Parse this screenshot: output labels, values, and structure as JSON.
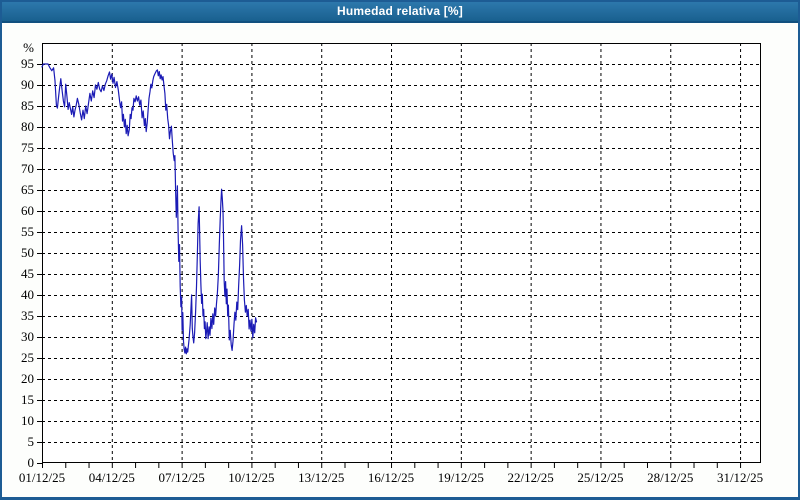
{
  "window": {
    "title": "Humedad relativa [%]"
  },
  "colors": {
    "header_bg_top": "#2d78ac",
    "header_bg_bottom": "#19608f",
    "header_border": "#11507f",
    "header_text": "#ffffff",
    "frame_border": "#1d5c94",
    "content_bg": "#fdfefc",
    "plot_bg": "#ffffff",
    "grid": "#000000",
    "axis": "#000000",
    "tick_label": "#000000",
    "series_line": "#1b1bb5"
  },
  "chart_data": {
    "type": "line",
    "title": "Humedad relativa [%]",
    "ylabel": "%",
    "xlabel": "",
    "unit": "%",
    "grid": "dashed",
    "legend": "none",
    "ylim": [
      0,
      100
    ],
    "ytick_step": 5,
    "ytick_labels": [
      "0",
      "5",
      "10",
      "15",
      "20",
      "25",
      "30",
      "35",
      "40",
      "45",
      "50",
      "55",
      "60",
      "65",
      "70",
      "75",
      "80",
      "85",
      "90",
      "95"
    ],
    "x_days_range": [
      0,
      30
    ],
    "x_right_padding_days": 0.9,
    "xtick_interval_days": 3,
    "minor_xtick_interval_days": 1,
    "xtick_labels": [
      "01/12/25",
      "04/12/25",
      "07/12/25",
      "10/12/25",
      "13/12/25",
      "16/12/25",
      "19/12/25",
      "22/12/25",
      "25/12/25",
      "28/12/25",
      "31/12/25"
    ],
    "series": [
      {
        "name": "Humedad relativa",
        "unit": "%",
        "points": [
          [
            0.0,
            94.3
          ],
          [
            0.06,
            95
          ],
          [
            0.26,
            95
          ],
          [
            0.33,
            94.2
          ],
          [
            0.42,
            93.4
          ],
          [
            0.5,
            94.1
          ],
          [
            0.56,
            91
          ],
          [
            0.62,
            85.2
          ],
          [
            0.66,
            84.5
          ],
          [
            0.71,
            87
          ],
          [
            0.76,
            89.5
          ],
          [
            0.81,
            91.5
          ],
          [
            0.87,
            88.5
          ],
          [
            0.92,
            86.2
          ],
          [
            0.97,
            84.8
          ],
          [
            1.02,
            90.2
          ],
          [
            1.07,
            87.4
          ],
          [
            1.12,
            84.2
          ],
          [
            1.17,
            85.8
          ],
          [
            1.22,
            84.4
          ],
          [
            1.27,
            83
          ],
          [
            1.32,
            84.8
          ],
          [
            1.37,
            82.4
          ],
          [
            1.42,
            84
          ],
          [
            1.47,
            85.2
          ],
          [
            1.52,
            86.8
          ],
          [
            1.58,
            85.4
          ],
          [
            1.64,
            83.4
          ],
          [
            1.7,
            81.7
          ],
          [
            1.76,
            84
          ],
          [
            1.82,
            82
          ],
          [
            1.88,
            85
          ],
          [
            1.94,
            83.2
          ],
          [
            2.0,
            85.6
          ],
          [
            2.06,
            88
          ],
          [
            2.12,
            86.2
          ],
          [
            2.18,
            88.6
          ],
          [
            2.24,
            87
          ],
          [
            2.3,
            90
          ],
          [
            2.36,
            89
          ],
          [
            2.42,
            90.6
          ],
          [
            2.48,
            89
          ],
          [
            2.54,
            88.4
          ],
          [
            2.6,
            89.8
          ],
          [
            2.66,
            88.7
          ],
          [
            2.72,
            90.2
          ],
          [
            2.78,
            91
          ],
          [
            2.84,
            92.2
          ],
          [
            2.9,
            93.1
          ],
          [
            2.95,
            91.4
          ],
          [
            3.0,
            92.6
          ],
          [
            3.05,
            90.4
          ],
          [
            3.1,
            91.8
          ],
          [
            3.16,
            89.4
          ],
          [
            3.22,
            90.8
          ],
          [
            3.28,
            88.8
          ],
          [
            3.34,
            86
          ],
          [
            3.38,
            84.6
          ],
          [
            3.42,
            86
          ],
          [
            3.46,
            81.4
          ],
          [
            3.5,
            83
          ],
          [
            3.54,
            80
          ],
          [
            3.58,
            81.8
          ],
          [
            3.62,
            78.4
          ],
          [
            3.66,
            80.4
          ],
          [
            3.7,
            77.9
          ],
          [
            3.75,
            79.4
          ],
          [
            3.79,
            83
          ],
          [
            3.83,
            82
          ],
          [
            3.87,
            84.6
          ],
          [
            3.91,
            84
          ],
          [
            3.95,
            86.8
          ],
          [
            4.0,
            86
          ],
          [
            4.05,
            87.4
          ],
          [
            4.1,
            86.2
          ],
          [
            4.15,
            87.2
          ],
          [
            4.2,
            85.2
          ],
          [
            4.25,
            86.4
          ],
          [
            4.3,
            82.2
          ],
          [
            4.35,
            83.8
          ],
          [
            4.4,
            80.3
          ],
          [
            4.44,
            82
          ],
          [
            4.48,
            78.9
          ],
          [
            4.52,
            81
          ],
          [
            4.56,
            84
          ],
          [
            4.6,
            86.8
          ],
          [
            4.64,
            88.4
          ],
          [
            4.68,
            90.2
          ],
          [
            4.72,
            89.3
          ],
          [
            4.76,
            91
          ],
          [
            4.8,
            92
          ],
          [
            4.84,
            92.5
          ],
          [
            4.88,
            93
          ],
          [
            4.92,
            93.4
          ],
          [
            4.96,
            93.6
          ],
          [
            5.0,
            92.2
          ],
          [
            5.04,
            93.2
          ],
          [
            5.08,
            91.5
          ],
          [
            5.12,
            92.4
          ],
          [
            5.16,
            91.2
          ],
          [
            5.2,
            92
          ],
          [
            5.24,
            90
          ],
          [
            5.28,
            88
          ],
          [
            5.32,
            84
          ],
          [
            5.36,
            85.4
          ],
          [
            5.4,
            82
          ],
          [
            5.44,
            80.4
          ],
          [
            5.48,
            77.2
          ],
          [
            5.52,
            79
          ],
          [
            5.56,
            80.2
          ],
          [
            5.6,
            76.8
          ],
          [
            5.64,
            73.8
          ],
          [
            5.68,
            72
          ],
          [
            5.71,
            73.2
          ],
          [
            5.74,
            65
          ],
          [
            5.77,
            58.5
          ],
          [
            5.79,
            60.5
          ],
          [
            5.82,
            66
          ],
          [
            5.85,
            55
          ],
          [
            5.88,
            48
          ],
          [
            5.91,
            52
          ],
          [
            5.94,
            42
          ],
          [
            5.97,
            37.2
          ],
          [
            6.0,
            39.5
          ],
          [
            6.02,
            31.6
          ],
          [
            6.05,
            35.8
          ],
          [
            6.08,
            29
          ],
          [
            6.11,
            27
          ],
          [
            6.14,
            26.2
          ],
          [
            6.17,
            27.6
          ],
          [
            6.2,
            26
          ],
          [
            6.23,
            27.2
          ],
          [
            6.26,
            26.4
          ],
          [
            6.32,
            29.5
          ],
          [
            6.37,
            33
          ],
          [
            6.43,
            40
          ],
          [
            6.46,
            32
          ],
          [
            6.49,
            30
          ],
          [
            6.52,
            28.6
          ],
          [
            6.56,
            31
          ],
          [
            6.6,
            36
          ],
          [
            6.64,
            42
          ],
          [
            6.68,
            50
          ],
          [
            6.71,
            57
          ],
          [
            6.75,
            61
          ],
          [
            6.77,
            56.4
          ],
          [
            6.8,
            48
          ],
          [
            6.83,
            42.4
          ],
          [
            6.86,
            38
          ],
          [
            6.89,
            40.2
          ],
          [
            6.92,
            35
          ],
          [
            6.95,
            36.6
          ],
          [
            6.98,
            32
          ],
          [
            7.01,
            33.6
          ],
          [
            7.04,
            29.6
          ],
          [
            7.07,
            31.2
          ],
          [
            7.1,
            33.4
          ],
          [
            7.14,
            29.6
          ],
          [
            7.18,
            32.4
          ],
          [
            7.22,
            30.4
          ],
          [
            7.26,
            34.5
          ],
          [
            7.3,
            32
          ],
          [
            7.34,
            35.5
          ],
          [
            7.38,
            33
          ],
          [
            7.42,
            36.9
          ],
          [
            7.46,
            35
          ],
          [
            7.5,
            38
          ],
          [
            7.54,
            40.5
          ],
          [
            7.58,
            45
          ],
          [
            7.62,
            52
          ],
          [
            7.66,
            58
          ],
          [
            7.69,
            62
          ],
          [
            7.72,
            65.2
          ],
          [
            7.75,
            63
          ],
          [
            7.78,
            60
          ],
          [
            7.8,
            54
          ],
          [
            7.83,
            43.2
          ],
          [
            7.86,
            39.7
          ],
          [
            7.89,
            43.2
          ],
          [
            7.92,
            37.9
          ],
          [
            7.95,
            41.4
          ],
          [
            7.98,
            35
          ],
          [
            8.01,
            37.6
          ],
          [
            8.05,
            29.3
          ],
          [
            8.09,
            31.6
          ],
          [
            8.13,
            28.2
          ],
          [
            8.17,
            26.8
          ],
          [
            8.21,
            29
          ],
          [
            8.25,
            33
          ],
          [
            8.29,
            35.9
          ],
          [
            8.33,
            34
          ],
          [
            8.37,
            38.3
          ],
          [
            8.41,
            36.5
          ],
          [
            8.45,
            42
          ],
          [
            8.49,
            47
          ],
          [
            8.53,
            53
          ],
          [
            8.58,
            56.5
          ],
          [
            8.62,
            52
          ],
          [
            8.66,
            44
          ],
          [
            8.7,
            38.8
          ],
          [
            8.74,
            35.9
          ],
          [
            8.78,
            37.5
          ],
          [
            8.82,
            35
          ],
          [
            8.86,
            36.6
          ],
          [
            8.9,
            31.9
          ],
          [
            8.94,
            34
          ],
          [
            8.98,
            31.4
          ],
          [
            9.02,
            34.2
          ],
          [
            9.06,
            29.8
          ],
          [
            9.1,
            33
          ],
          [
            9.14,
            31
          ],
          [
            9.18,
            34.6
          ],
          [
            9.22,
            33.6
          ]
        ]
      }
    ]
  }
}
